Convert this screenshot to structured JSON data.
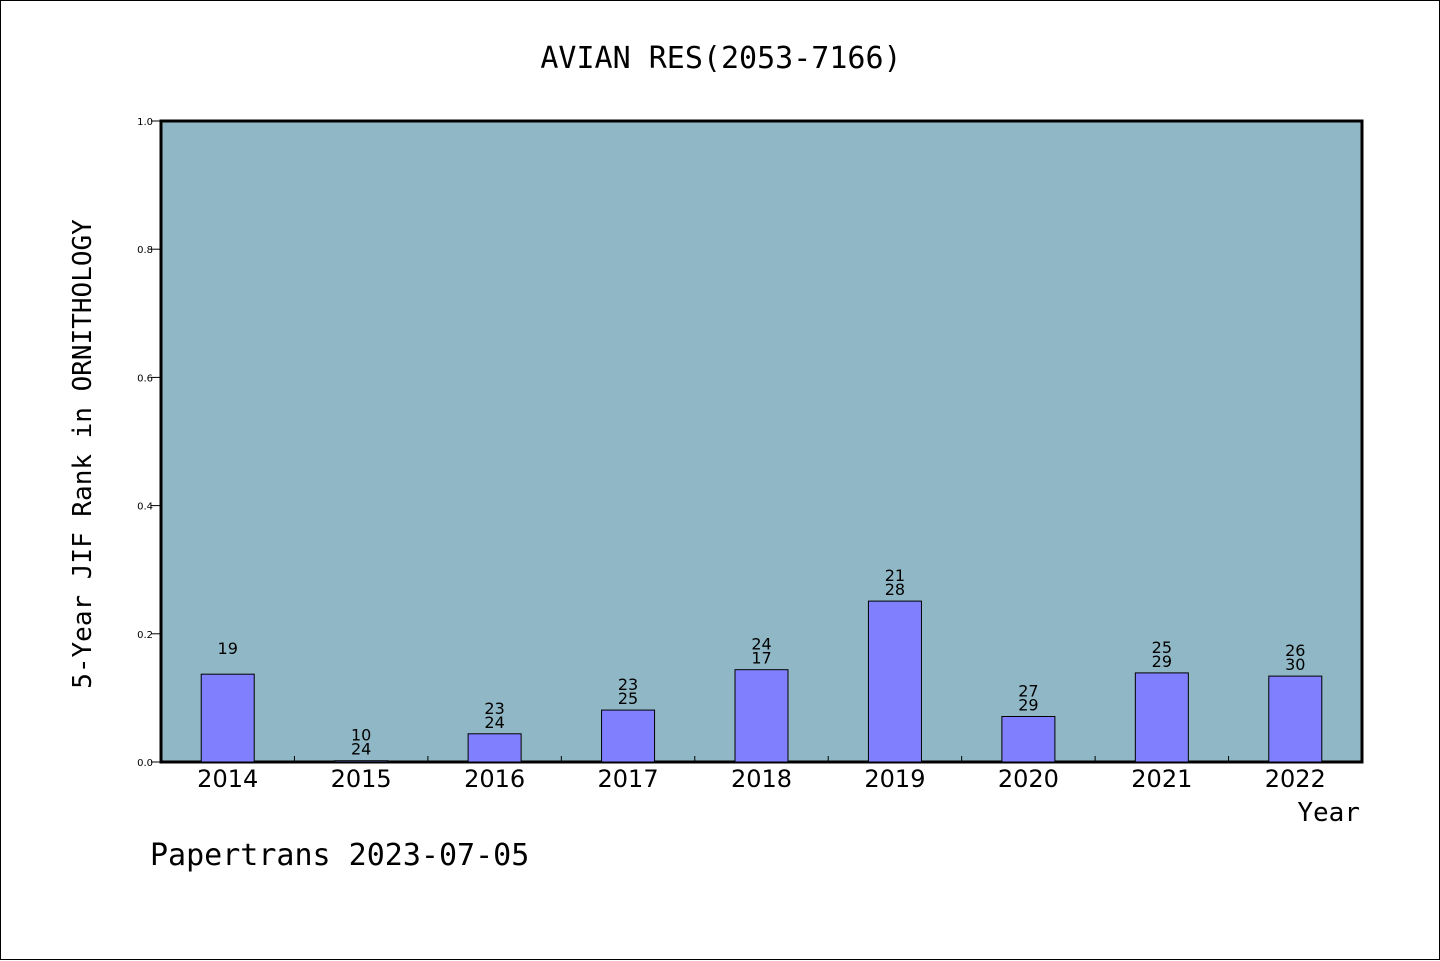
{
  "chart_data": {
    "type": "bar",
    "title": "AVIAN RES(2053-7166)",
    "xlabel": "Year",
    "ylabel": "5-Year JIF Rank in ORNITHOLOGY",
    "categories": [
      "2014",
      "2015",
      "2016",
      "2017",
      "2018",
      "2019",
      "2020",
      "2021",
      "2022"
    ],
    "values": [
      0.137,
      0.002,
      0.044,
      0.081,
      0.144,
      0.251,
      0.071,
      0.139,
      0.134
    ],
    "bar_labels": [
      [
        "19"
      ],
      [
        "10",
        "24"
      ],
      [
        "23",
        "24"
      ],
      [
        "23",
        "25"
      ],
      [
        "24",
        "17"
      ],
      [
        "21",
        "28"
      ],
      [
        "27",
        "29"
      ],
      [
        "25",
        "29"
      ],
      [
        "26",
        "30"
      ]
    ],
    "ylim": [
      0.0,
      1.0
    ],
    "yticks": [
      "0.0",
      "0.2",
      "0.4",
      "0.6",
      "0.8",
      "1.0"
    ],
    "grid": false,
    "colors": {
      "plot_background": "#8fb7c5",
      "bar_fill": "#8080ff",
      "bar_stroke": "#000000"
    }
  },
  "footer": {
    "text": "Papertrans 2023-07-05"
  }
}
